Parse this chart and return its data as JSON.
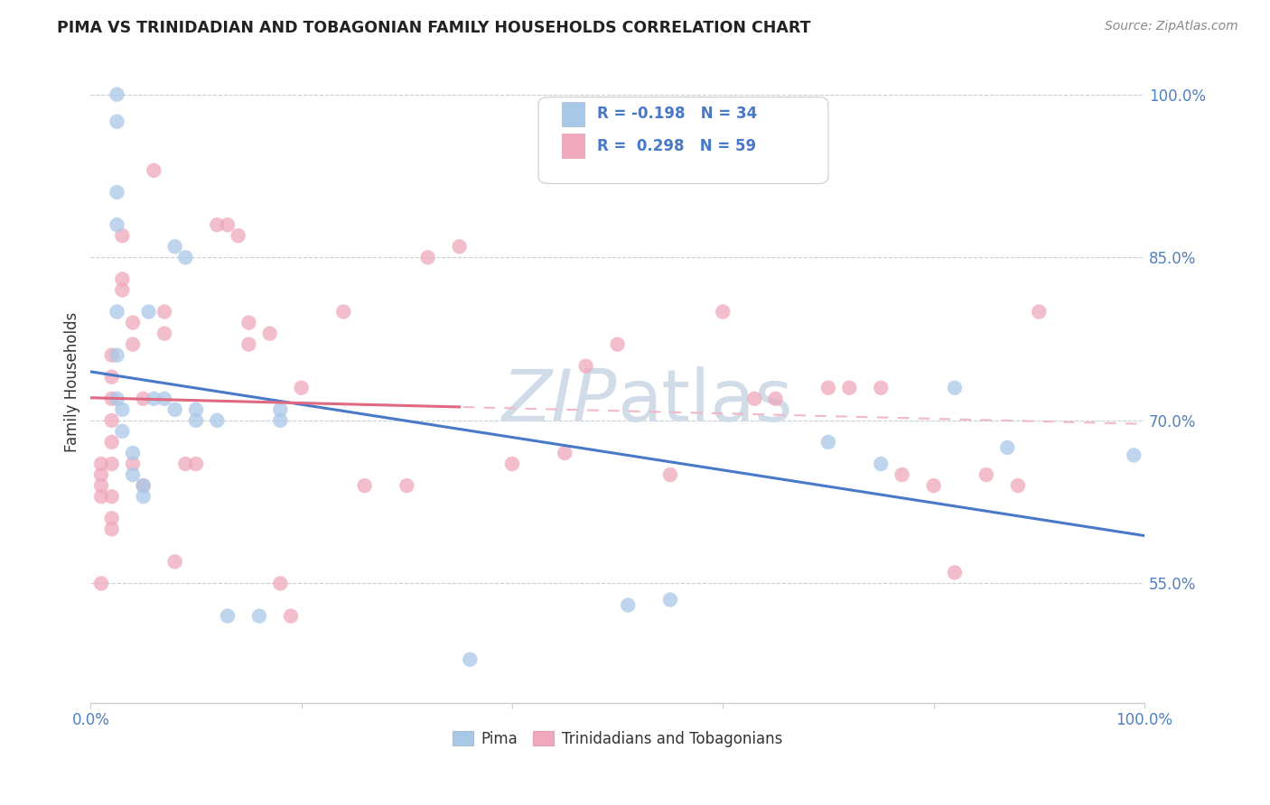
{
  "title": "PIMA VS TRINIDADIAN AND TOBAGONIAN FAMILY HOUSEHOLDS CORRELATION CHART",
  "source": "Source: ZipAtlas.com",
  "ylabel": "Family Households",
  "xlim": [
    0,
    1.0
  ],
  "ylim": [
    0.44,
    1.03
  ],
  "yticks": [
    0.55,
    0.7,
    0.85,
    1.0
  ],
  "ytick_labels": [
    "55.0%",
    "70.0%",
    "85.0%",
    "100.0%"
  ],
  "legend_r_pima": "-0.198",
  "legend_n_pima": "34",
  "legend_r_tnt": "0.298",
  "legend_n_tnt": "59",
  "pima_color": "#a8c8e8",
  "tnt_color": "#f0a8bc",
  "pima_line_color": "#4878c8",
  "tnt_line_color": "#e06880",
  "tnt_dashed_color": "#f0b8c8",
  "background_color": "#ffffff",
  "watermark_color": "#d0dce8",
  "pima_points_x": [
    0.025,
    0.025,
    0.025,
    0.025,
    0.025,
    0.025,
    0.025,
    0.03,
    0.03,
    0.04,
    0.04,
    0.05,
    0.05,
    0.055,
    0.06,
    0.07,
    0.08,
    0.08,
    0.09,
    0.1,
    0.1,
    0.12,
    0.13,
    0.16,
    0.18,
    0.18,
    0.36,
    0.51,
    0.55,
    0.7,
    0.75,
    0.82,
    0.87,
    0.99
  ],
  "pima_points_y": [
    1.0,
    0.975,
    0.91,
    0.88,
    0.8,
    0.76,
    0.72,
    0.71,
    0.69,
    0.67,
    0.65,
    0.64,
    0.63,
    0.8,
    0.72,
    0.72,
    0.71,
    0.86,
    0.85,
    0.71,
    0.7,
    0.7,
    0.52,
    0.52,
    0.71,
    0.7,
    0.48,
    0.53,
    0.535,
    0.68,
    0.66,
    0.73,
    0.675,
    0.668
  ],
  "tnt_points_x": [
    0.01,
    0.01,
    0.01,
    0.01,
    0.01,
    0.02,
    0.02,
    0.02,
    0.02,
    0.02,
    0.02,
    0.02,
    0.02,
    0.02,
    0.03,
    0.03,
    0.03,
    0.04,
    0.04,
    0.04,
    0.05,
    0.05,
    0.06,
    0.07,
    0.07,
    0.08,
    0.09,
    0.1,
    0.12,
    0.13,
    0.14,
    0.15,
    0.15,
    0.17,
    0.18,
    0.19,
    0.2,
    0.24,
    0.26,
    0.3,
    0.32,
    0.35,
    0.4,
    0.45,
    0.47,
    0.5,
    0.55,
    0.6,
    0.63,
    0.65,
    0.7,
    0.72,
    0.75,
    0.77,
    0.8,
    0.82,
    0.85,
    0.88,
    0.9
  ],
  "tnt_points_y": [
    0.66,
    0.65,
    0.64,
    0.63,
    0.55,
    0.76,
    0.74,
    0.72,
    0.7,
    0.68,
    0.66,
    0.63,
    0.61,
    0.6,
    0.87,
    0.83,
    0.82,
    0.79,
    0.77,
    0.66,
    0.72,
    0.64,
    0.93,
    0.8,
    0.78,
    0.57,
    0.66,
    0.66,
    0.88,
    0.88,
    0.87,
    0.79,
    0.77,
    0.78,
    0.55,
    0.52,
    0.73,
    0.8,
    0.64,
    0.64,
    0.85,
    0.86,
    0.66,
    0.67,
    0.75,
    0.77,
    0.65,
    0.8,
    0.72,
    0.72,
    0.73,
    0.73,
    0.73,
    0.65,
    0.64,
    0.56,
    0.65,
    0.64,
    0.8
  ]
}
